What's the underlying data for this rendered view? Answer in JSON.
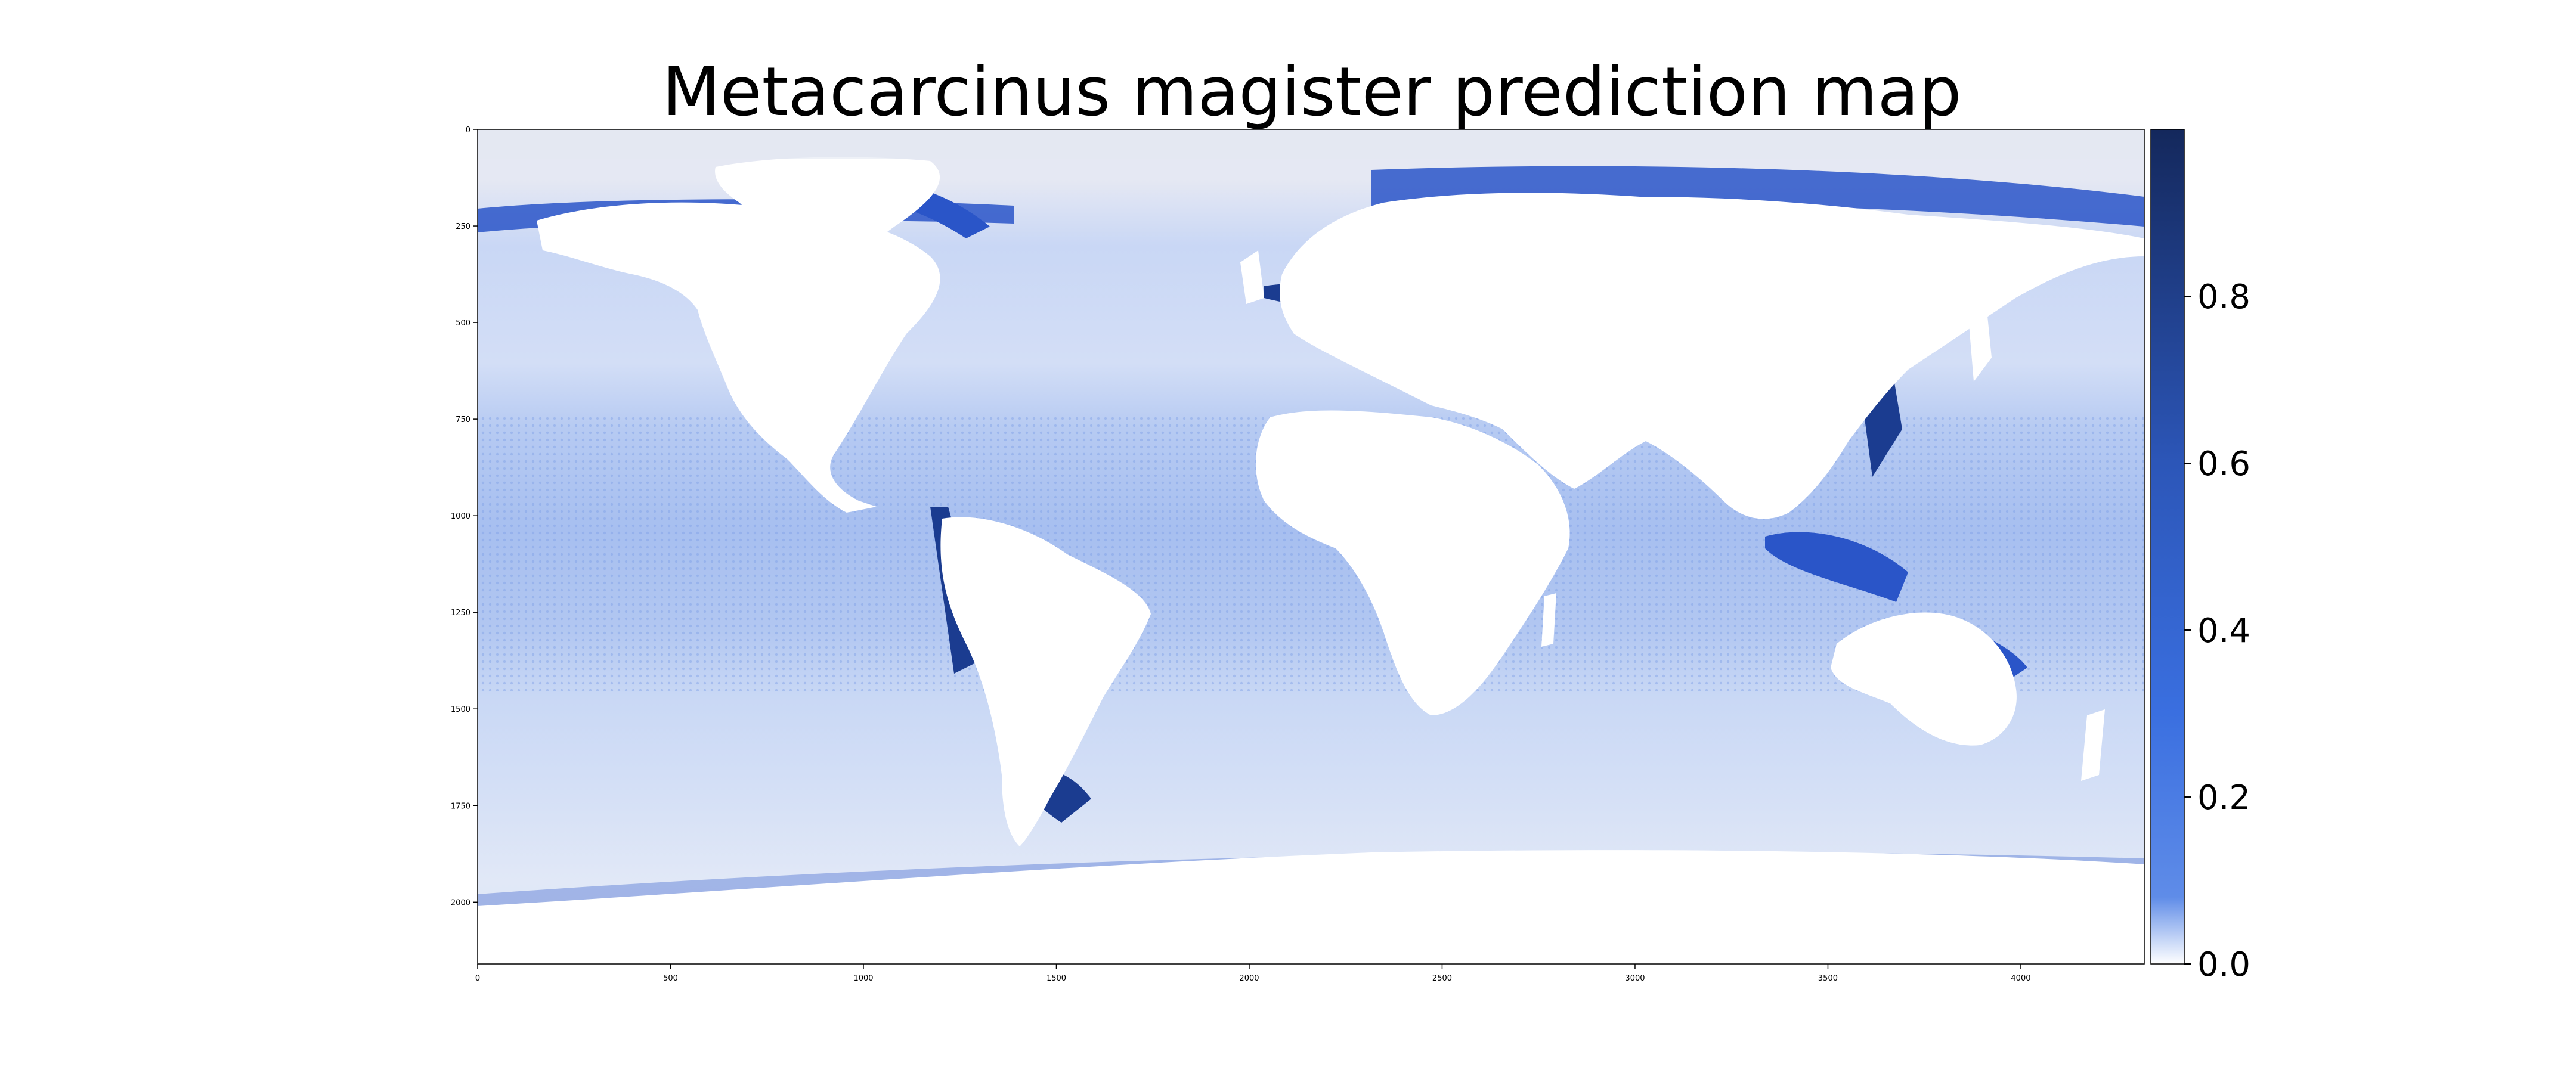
{
  "title": "Metacarcinus magister prediction map",
  "map": {
    "x_ticks": [
      "0",
      "500",
      "1000",
      "1500",
      "2000",
      "2500",
      "3000",
      "3500",
      "4000"
    ],
    "y_ticks": [
      "0",
      "250",
      "500",
      "750",
      "1000",
      "1250",
      "1500",
      "1750",
      "2000"
    ],
    "x_range": [
      0,
      4320
    ],
    "y_range": [
      0,
      2160
    ],
    "land_color": "#ffffff",
    "grid": false
  },
  "colorbar": {
    "ticks": [
      "0.0",
      "0.2",
      "0.4",
      "0.6",
      "0.8"
    ],
    "range": [
      0,
      1
    ],
    "color_low": "#ffffff",
    "color_mid": "#3a6fe0",
    "color_high": "#14285c",
    "position": "right"
  },
  "colors": {
    "ocean_base": "#dfe6f7",
    "polar_bg": "#e5e8f3",
    "tropical_band": "#aec3f0",
    "coastal_high": "#2a55c8",
    "coastal_max": "#1b3c90"
  }
}
